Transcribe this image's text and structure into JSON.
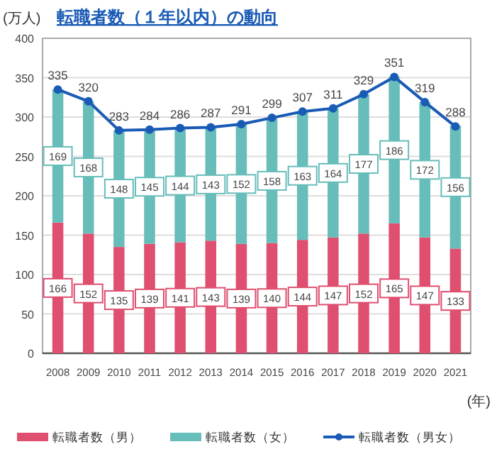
{
  "chart_data": {
    "type": "bar",
    "stacked": true,
    "title": "転職者数（１年以内）の動向",
    "ylabel": "(万人)",
    "xlabel": "(年)",
    "categories": [
      "2008",
      "2009",
      "2010",
      "2011",
      "2012",
      "2013",
      "2014",
      "2015",
      "2016",
      "2017",
      "2018",
      "2019",
      "2020",
      "2021"
    ],
    "series": [
      {
        "name": "転職者数（男）",
        "color": "#df4f6f",
        "values": [
          166,
          152,
          135,
          139,
          141,
          143,
          139,
          140,
          144,
          147,
          152,
          165,
          147,
          133
        ]
      },
      {
        "name": "転職者数（女）",
        "color": "#67bdb9",
        "values": [
          169,
          168,
          148,
          145,
          144,
          143,
          152,
          158,
          163,
          164,
          177,
          186,
          172,
          156
        ]
      },
      {
        "name": "転職者数（男女）",
        "type": "line",
        "color": "#1a5bb5",
        "marker": "circle",
        "values": [
          335,
          320,
          283,
          284,
          286,
          287,
          291,
          299,
          307,
          311,
          329,
          351,
          319,
          288
        ]
      }
    ],
    "ylim": [
      0,
      400
    ],
    "yticks": [
      0,
      50,
      100,
      150,
      200,
      250,
      300,
      350,
      400
    ],
    "grid": "y",
    "legend": "bottom",
    "data_labels": true
  }
}
